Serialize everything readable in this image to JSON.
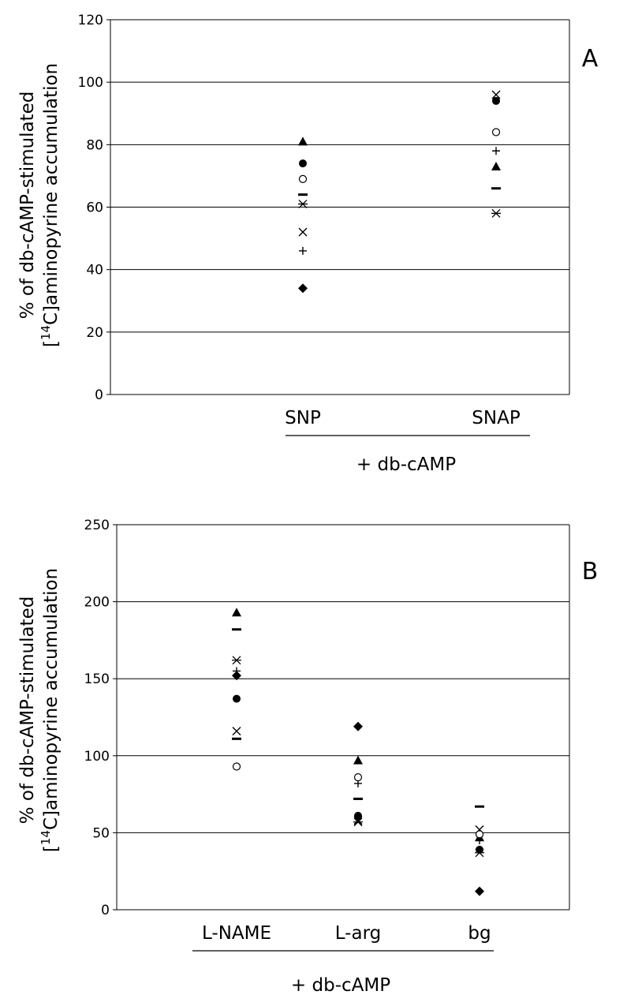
{
  "chart_data": [
    {
      "type": "scatter",
      "panel_label": "A",
      "ylabel_line1": "% of db-cAMP-stimulated",
      "ylabel_line2_prefix": "[",
      "ylabel_line2_sup": "14",
      "ylabel_line2_suffix": "C]aminopyrine accumulation",
      "group_label": "+ db-cAMP",
      "ylim": [
        0,
        120
      ],
      "yticks": [
        0,
        20,
        40,
        60,
        80,
        100,
        120
      ],
      "grid": true,
      "categories": [
        "SNP",
        "SNAP"
      ],
      "series": [
        {
          "marker": "diamond",
          "values": [
            34,
            null
          ]
        },
        {
          "marker": "dash",
          "values": [
            64,
            66
          ]
        },
        {
          "marker": "triangle",
          "values": [
            81,
            73
          ]
        },
        {
          "marker": "cross",
          "values": [
            52,
            96
          ]
        },
        {
          "marker": "asterisk",
          "values": [
            61,
            58
          ]
        },
        {
          "marker": "circle",
          "values": [
            74,
            94
          ]
        },
        {
          "marker": "plus",
          "values": [
            46,
            78
          ]
        },
        {
          "marker": "open-circle",
          "values": [
            69,
            84
          ]
        }
      ]
    },
    {
      "type": "scatter",
      "panel_label": "B",
      "ylabel_line1": "% of db-cAMP-stimulated",
      "ylabel_line2_prefix": "[",
      "ylabel_line2_sup": "14",
      "ylabel_line2_suffix": "C]aminopyrine accumulation",
      "group_label": "+ db-cAMP",
      "ylim": [
        0,
        250
      ],
      "yticks": [
        0,
        50,
        100,
        150,
        200,
        250
      ],
      "grid": true,
      "categories": [
        "L-NAME",
        "L-arg",
        "bg"
      ],
      "series": [
        {
          "marker": "diamond",
          "values": [
            152,
            119,
            12
          ]
        },
        {
          "marker": "dash",
          "values": [
            182,
            72,
            67
          ]
        },
        {
          "marker": "triangle",
          "values": [
            193,
            97,
            47
          ]
        },
        {
          "marker": "cross",
          "values": [
            116,
            58,
            52
          ]
        },
        {
          "marker": "asterisk",
          "values": [
            162,
            57,
            37
          ]
        },
        {
          "marker": "circle",
          "values": [
            137,
            61,
            39
          ]
        },
        {
          "marker": "plus",
          "values": [
            155,
            82,
            45
          ]
        },
        {
          "marker": "open-circle",
          "values": [
            93,
            86,
            49
          ]
        },
        {
          "marker": "dash",
          "values": [
            111,
            null,
            null
          ]
        }
      ]
    }
  ]
}
